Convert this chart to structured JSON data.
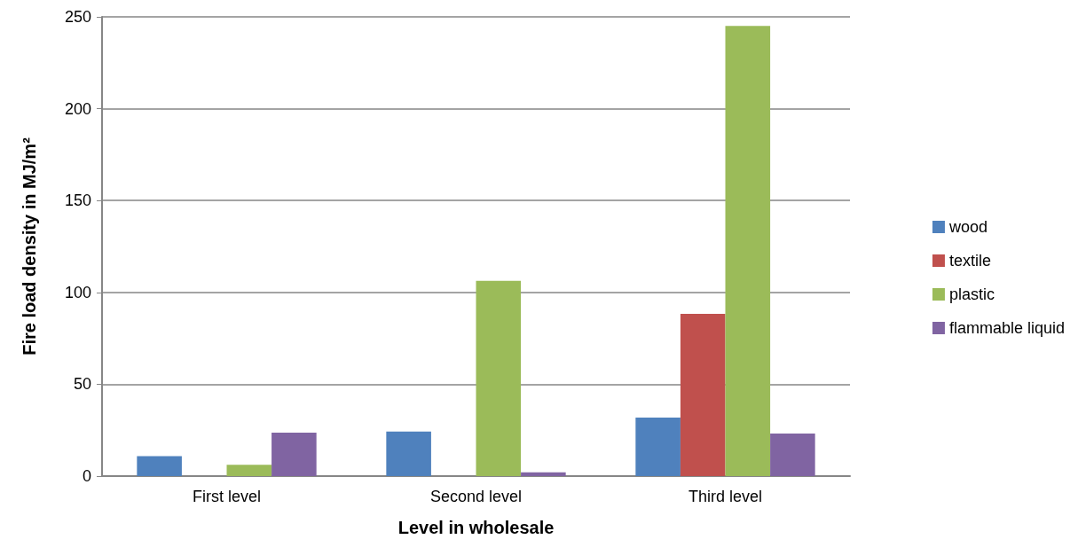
{
  "chart_data": {
    "type": "bar",
    "xlabel": "Level in wholesale",
    "ylabel": "Fire load density in MJ/m²",
    "categories": [
      "First level",
      "Second level",
      "Third level"
    ],
    "series": [
      {
        "name": "wood",
        "color": "#4f81bd",
        "values": [
          10.8,
          24.3,
          31.8
        ]
      },
      {
        "name": "textile",
        "color": "#c0504d",
        "values": [
          0,
          0,
          88.3
        ]
      },
      {
        "name": "plastic",
        "color": "#9bbb59",
        "values": [
          6.1,
          106.3,
          245.1
        ]
      },
      {
        "name": "flammable liquid",
        "color": "#8064a2",
        "values": [
          23.6,
          2.1,
          23.2
        ]
      }
    ],
    "ylim": [
      0,
      250
    ],
    "yticks": [
      0,
      50,
      100,
      150,
      200,
      250
    ],
    "grid": "y",
    "legend": "right"
  }
}
